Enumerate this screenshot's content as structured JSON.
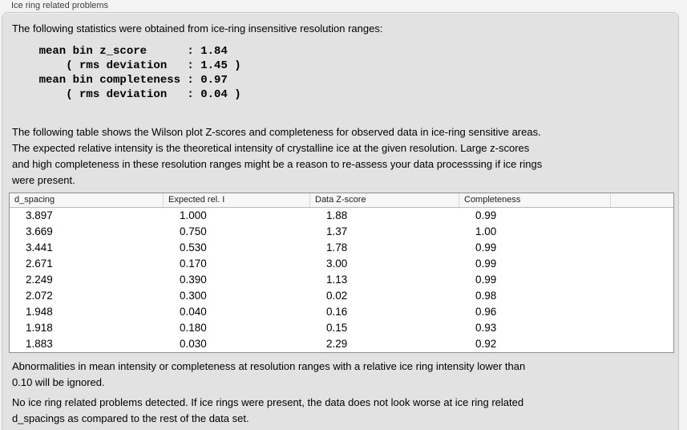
{
  "window": {
    "group_label": "Ice ring related problems"
  },
  "intro_text": "The following statistics were obtained from ice-ring insensitive resolution ranges:",
  "stats_block": "    mean bin z_score      : 1.84\n        ( rms deviation   : 1.45 )\n    mean bin completeness : 0.97\n        ( rms deviation   : 0.04 )",
  "stats": {
    "mean_bin_z_score": "1.84",
    "z_score_rms_deviation": "1.45",
    "mean_bin_completeness": "0.97",
    "completeness_rms_deviation": "0.04"
  },
  "description_text": "The following table shows the Wilson plot Z-scores and completeness for observed data in ice-ring sensitive areas.\nThe expected relative intensity is the theoretical intensity of crystalline ice at the given resolution. Large z-scores\nand high completeness in these resolution ranges might be a reason to re-assess your data processsing if ice rings\nwere present.",
  "table": {
    "columns": [
      "d_spacing",
      "Expected rel. I",
      "Data Z-score",
      "Completeness",
      ""
    ],
    "rows": [
      [
        "3.897",
        "1.000",
        "1.88",
        "0.99"
      ],
      [
        "3.669",
        "0.750",
        "1.37",
        "1.00"
      ],
      [
        "3.441",
        "0.530",
        "1.78",
        "0.99"
      ],
      [
        "2.671",
        "0.170",
        "3.00",
        "0.99"
      ],
      [
        "2.249",
        "0.390",
        "1.13",
        "0.99"
      ],
      [
        "2.072",
        "0.300",
        "0.02",
        "0.98"
      ],
      [
        "1.948",
        "0.040",
        "0.16",
        "0.96"
      ],
      [
        "1.918",
        "0.180",
        "0.15",
        "0.93"
      ],
      [
        "1.883",
        "0.030",
        "2.29",
        "0.92"
      ]
    ]
  },
  "note_text": "Abnormalities in mean intensity or completeness at resolution ranges with a relative ice ring intensity lower than\n0.10 will be ignored.",
  "conclusion_text": "No ice ring related problems detected. If ice rings were present, the data does not look worse at ice ring related\nd_spacings as compared to the rest of the data set.",
  "colors": {
    "page_background": "#f3f3f3",
    "panel_background": "#e2e2e2",
    "panel_border": "#c6c6c6",
    "table_background": "#ffffff",
    "table_border": "#8f8f8f",
    "table_header_background": "#f7f7f7",
    "text": "#000000"
  }
}
